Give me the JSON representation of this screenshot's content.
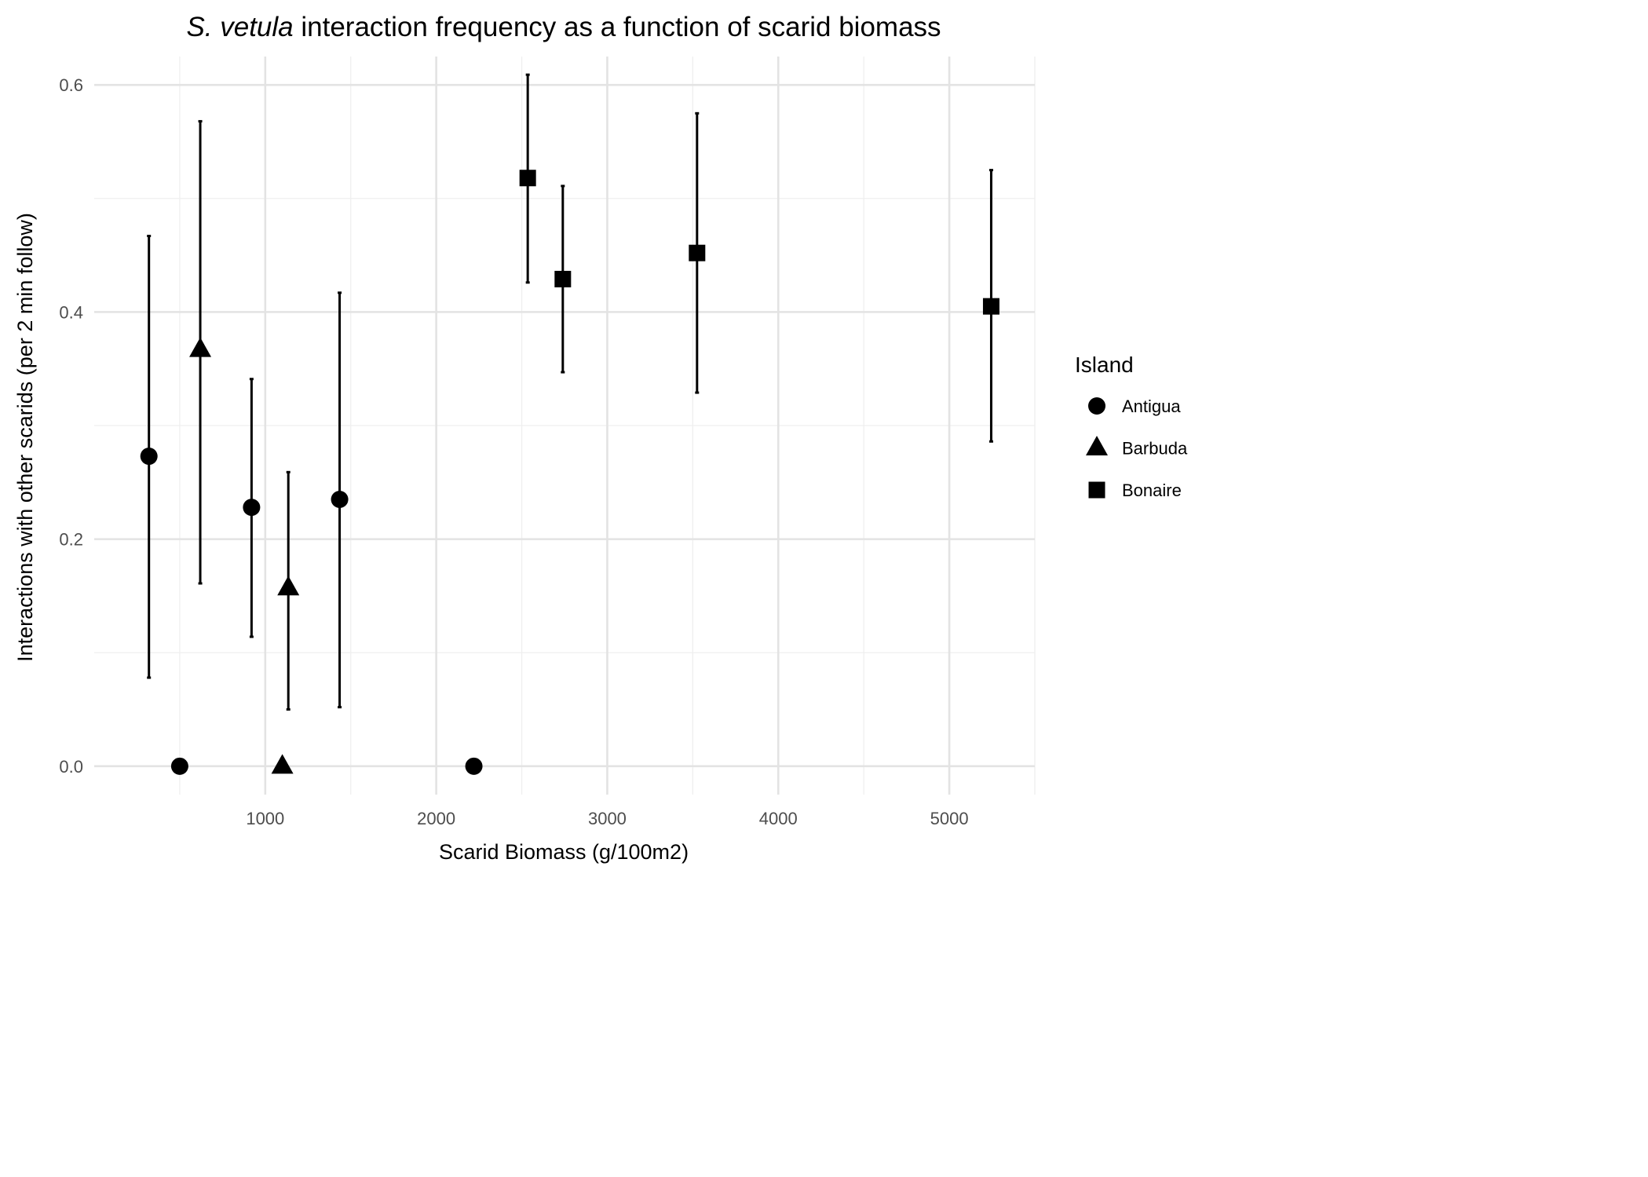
{
  "chart_data": {
    "type": "scatter",
    "title": {
      "italic": "S. vetula",
      "rest": " interaction frequency as a function of scarid biomass"
    },
    "xlabel": "Scarid Biomass (g/100m2)",
    "ylabel": "Interactions with other scarids (per 2 min follow)",
    "xlim": [
      0,
      5500
    ],
    "ylim": [
      -0.025,
      0.625
    ],
    "x_ticks": [
      1000,
      2000,
      3000,
      4000,
      5000
    ],
    "x_tick_labels": [
      "1000",
      "2000",
      "3000",
      "4000",
      "5000"
    ],
    "y_ticks": [
      0.0,
      0.2,
      0.4,
      0.6
    ],
    "y_tick_labels": [
      "0.0",
      "0.2",
      "0.4",
      "0.6"
    ],
    "grid": true,
    "legend": {
      "title": "Island",
      "position": "right",
      "entries": [
        {
          "label": "Antigua",
          "shape": "circle"
        },
        {
          "label": "Barbuda",
          "shape": "triangle"
        },
        {
          "label": "Bonaire",
          "shape": "square"
        }
      ]
    },
    "series": [
      {
        "name": "Antigua",
        "shape": "circle",
        "points": [
          {
            "x": 320,
            "y": 0.273,
            "ymin": 0.078,
            "ymax": 0.467
          },
          {
            "x": 500,
            "y": 0.0,
            "ymin": null,
            "ymax": null
          },
          {
            "x": 920,
            "y": 0.228,
            "ymin": 0.114,
            "ymax": 0.341
          },
          {
            "x": 1435,
            "y": 0.235,
            "ymin": 0.052,
            "ymax": 0.417
          },
          {
            "x": 2220,
            "y": 0.0,
            "ymin": null,
            "ymax": null
          }
        ]
      },
      {
        "name": "Barbuda",
        "shape": "triangle",
        "points": [
          {
            "x": 620,
            "y": 0.367,
            "ymin": 0.161,
            "ymax": 0.568
          },
          {
            "x": 1100,
            "y": 0.0,
            "ymin": null,
            "ymax": null
          },
          {
            "x": 1135,
            "y": 0.157,
            "ymin": 0.05,
            "ymax": 0.259
          }
        ]
      },
      {
        "name": "Bonaire",
        "shape": "square",
        "points": [
          {
            "x": 2535,
            "y": 0.518,
            "ymin": 0.426,
            "ymax": 0.609
          },
          {
            "x": 2740,
            "y": 0.429,
            "ymin": 0.347,
            "ymax": 0.511
          },
          {
            "x": 3525,
            "y": 0.452,
            "ymin": 0.329,
            "ymax": 0.575
          },
          {
            "x": 5245,
            "y": 0.405,
            "ymin": 0.286,
            "ymax": 0.525
          }
        ]
      }
    ]
  }
}
